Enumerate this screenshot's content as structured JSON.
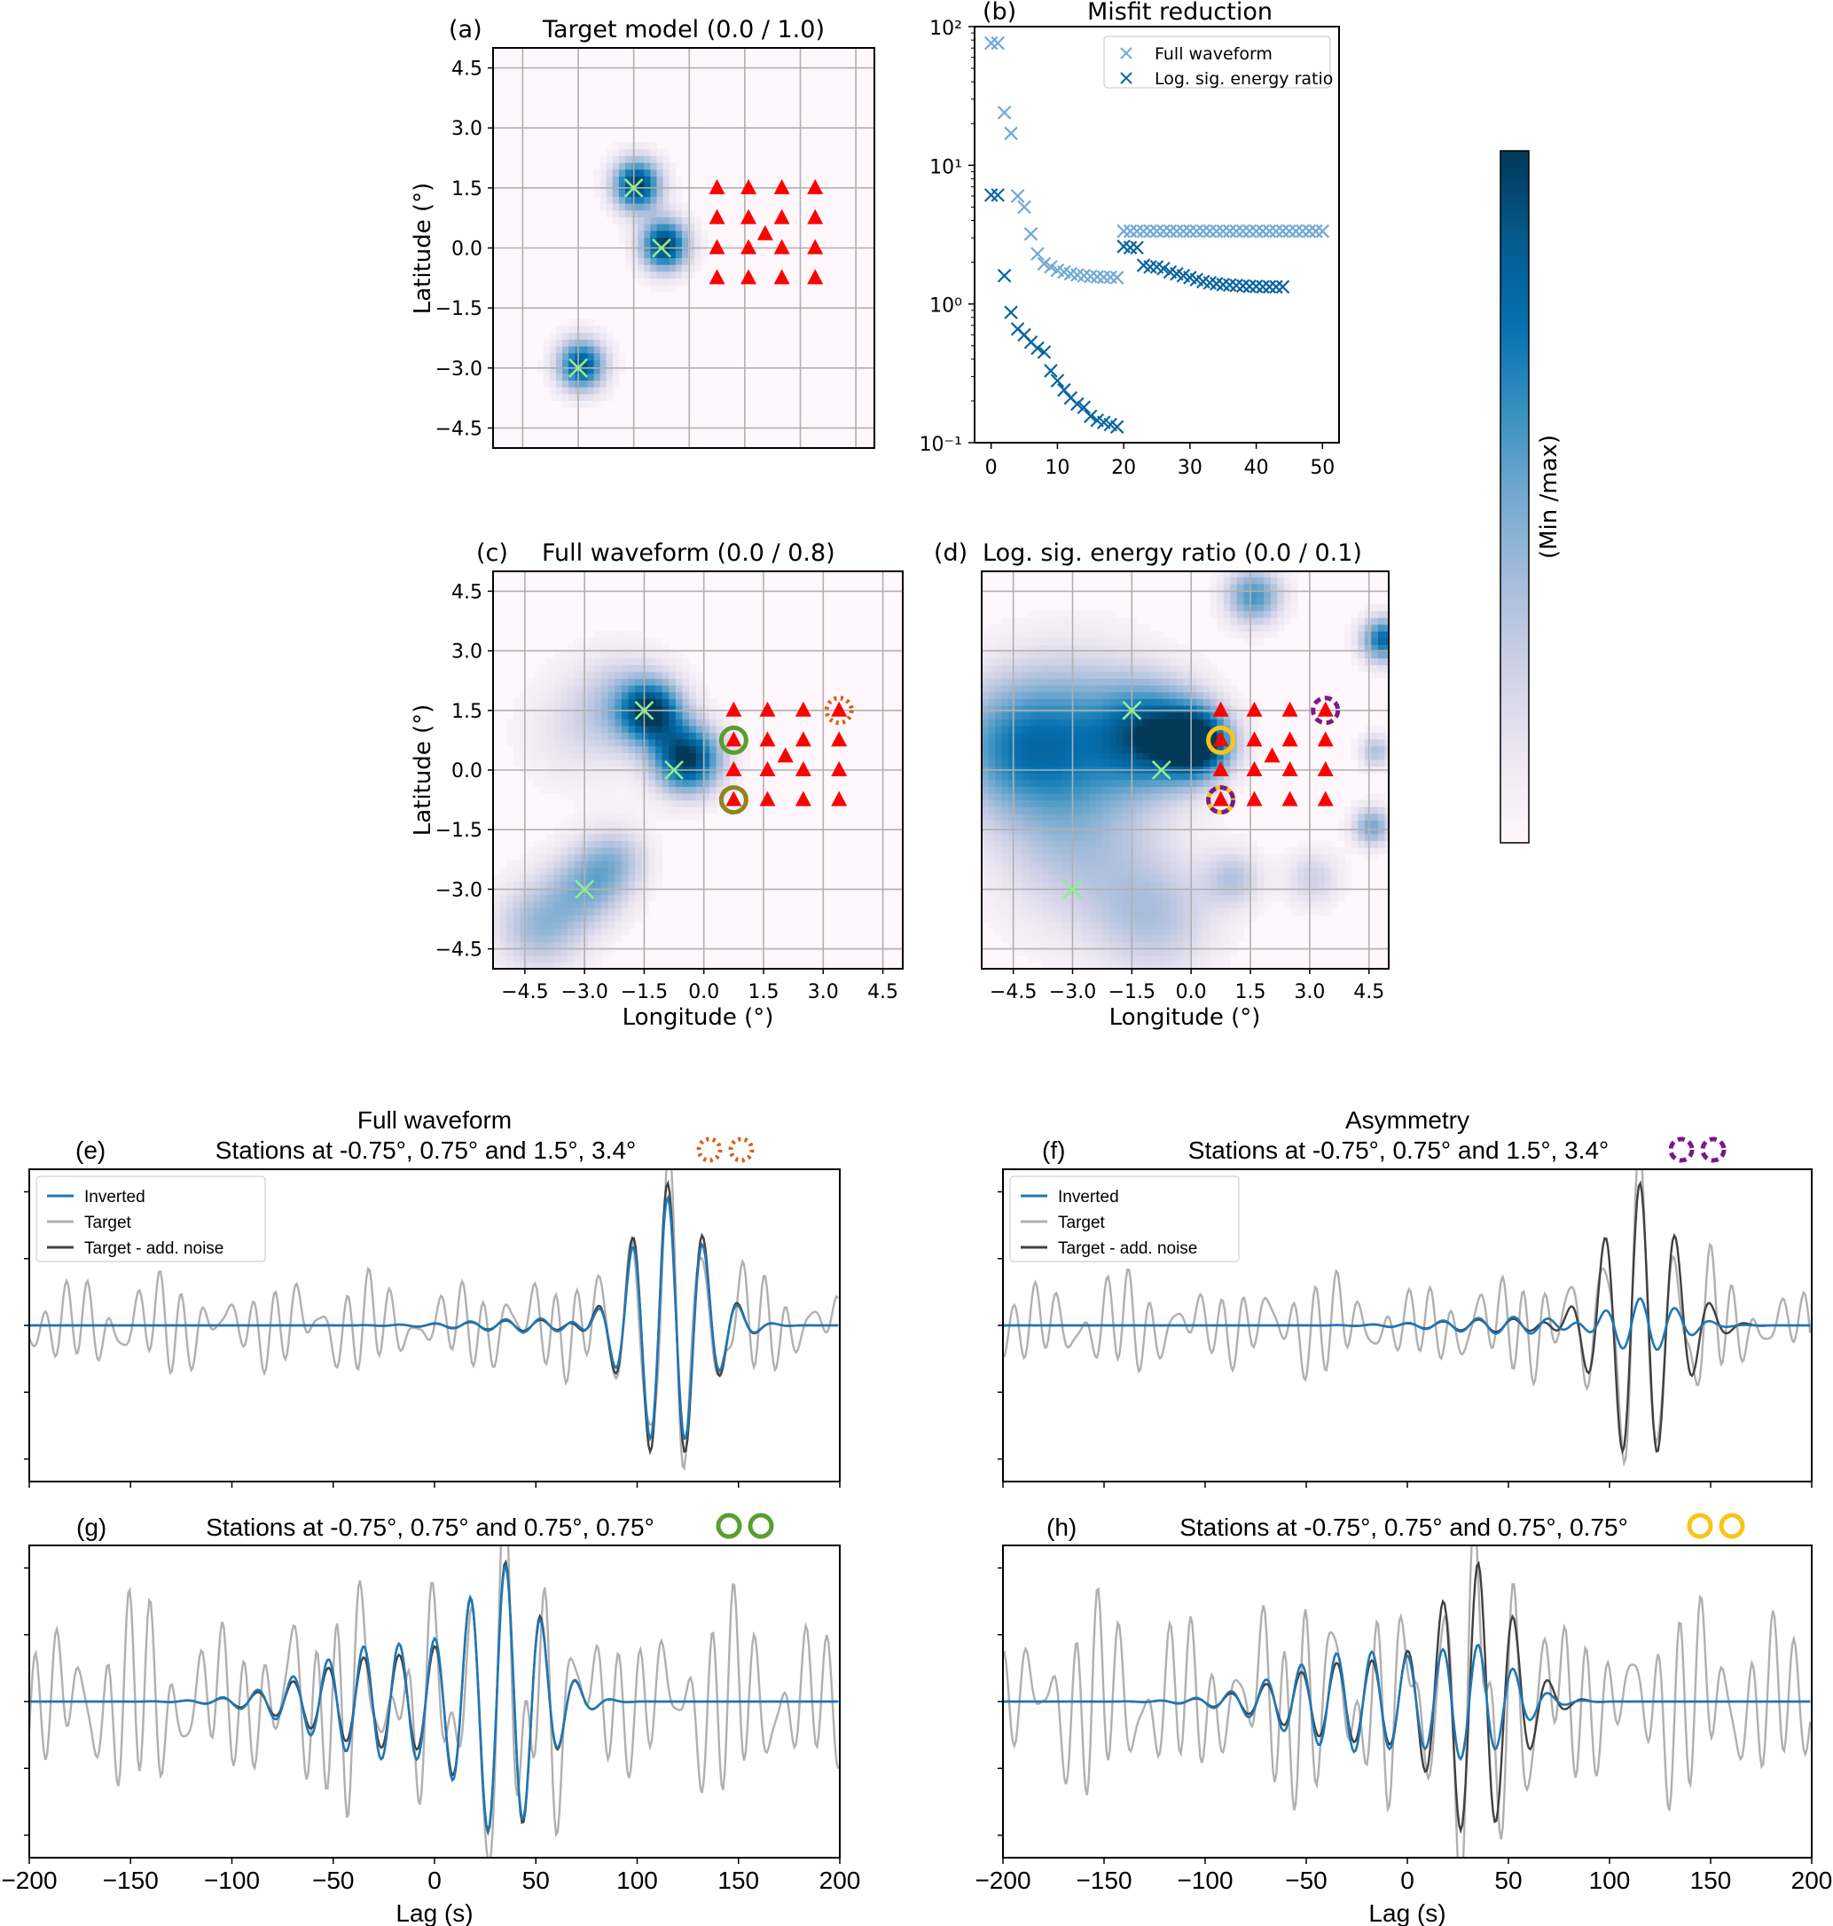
{
  "colors": {
    "colormap": [
      "#fff7fb",
      "#ece7f2",
      "#d0d1e6",
      "#a6bddb",
      "#74a9cf",
      "#3690c0",
      "#0570b0",
      "#045a8d",
      "#023858"
    ],
    "station": "#ff0000",
    "source": "#90ee90",
    "light_series": "#6fa8d6",
    "dark_series": "#0a64a0",
    "inverted": "#1f77b4",
    "target": "#b0b0b0",
    "target_noise": "#404040",
    "orange_marker": "#d95f0e",
    "green_marker": "#5a9e2f",
    "purple_marker": "#7b1a86",
    "yellow_marker": "#f5c518"
  },
  "colorbar": {
    "label": "(Min /max)"
  },
  "chart_data": [
    {
      "id": "a",
      "type": "heatmap",
      "panel_label": "(a)",
      "title": "Target model (0.0 / 1.0)",
      "xlabel": "",
      "ylabel": "Latitude (°)",
      "xlim": [
        -5.3,
        5.0
      ],
      "ylim": [
        -5.0,
        5.0
      ],
      "xticks": [],
      "yticks": [
        "4.5",
        "3.0",
        "1.5",
        "0.0",
        "−1.5",
        "−3.0",
        "−4.5"
      ],
      "ytick_values": [
        4.5,
        3.0,
        1.5,
        0.0,
        -1.5,
        -3.0,
        -4.5
      ],
      "grid": true,
      "blobs": [
        {
          "lon": -1.5,
          "lat": 1.5,
          "spread": 0.45,
          "amp": 1.0
        },
        {
          "lon": -0.75,
          "lat": 0.0,
          "spread": 0.45,
          "amp": 1.0
        },
        {
          "lon": -3.0,
          "lat": -3.0,
          "spread": 0.45,
          "amp": 0.9
        }
      ],
      "sources": [
        {
          "lon": -1.5,
          "lat": 1.5
        },
        {
          "lon": -0.75,
          "lat": 0.0
        },
        {
          "lon": -3.0,
          "lat": -3.0
        }
      ],
      "highlights": []
    },
    {
      "id": "c",
      "type": "heatmap",
      "panel_label": "(c)",
      "title": "Full waveform (0.0 / 0.8)",
      "xlabel": "Longitude (°)",
      "ylabel": "Latitude (°)",
      "xlim": [
        -5.3,
        5.0
      ],
      "ylim": [
        -5.0,
        5.0
      ],
      "xticks": [
        "−4.5",
        "−3.0",
        "−1.5",
        "0.0",
        "1.5",
        "3.0",
        "4.5"
      ],
      "xtick_values": [
        -4.5,
        -3.0,
        -1.5,
        0.0,
        1.5,
        3.0,
        4.5
      ],
      "yticks": [
        "4.5",
        "3.0",
        "1.5",
        "0.0",
        "−1.5",
        "−3.0",
        "−4.5"
      ],
      "ytick_values": [
        4.5,
        3.0,
        1.5,
        0.0,
        -1.5,
        -3.0,
        -4.5
      ],
      "grid": true,
      "blobs": [
        {
          "lon": -1.4,
          "lat": 1.4,
          "spread": 0.55,
          "amp": 0.85
        },
        {
          "lon": -0.5,
          "lat": 0.2,
          "spread": 0.6,
          "amp": 1.0
        },
        {
          "lon": -2.2,
          "lat": 1.6,
          "spread": 0.9,
          "amp": 0.3
        },
        {
          "lon": -3.0,
          "lat": -3.0,
          "spread": 0.7,
          "amp": 0.4
        },
        {
          "lon": -4.2,
          "lat": -4.0,
          "spread": 0.8,
          "amp": 0.4
        },
        {
          "lon": -2.3,
          "lat": -2.3,
          "spread": 0.6,
          "amp": 0.3
        },
        {
          "lon": -3.5,
          "lat": 0.8,
          "spread": 1.0,
          "amp": 0.12
        }
      ],
      "sources": [
        {
          "lon": -1.5,
          "lat": 1.5
        },
        {
          "lon": -0.75,
          "lat": 0.0
        },
        {
          "lon": -3.0,
          "lat": -3.0
        }
      ],
      "highlights": [
        {
          "lon": 3.4,
          "lat": 1.5,
          "style": "dotted",
          "color": "orange"
        },
        {
          "lon": 0.75,
          "lat": 0.75,
          "style": "solid",
          "color": "green"
        },
        {
          "lon": 0.75,
          "lat": -0.75,
          "style": "solid",
          "color": "green"
        },
        {
          "lon": 0.75,
          "lat": -0.75,
          "style": "dotted",
          "color": "orange"
        }
      ]
    },
    {
      "id": "d",
      "type": "heatmap",
      "panel_label": "(d)",
      "title": "Log. sig. energy ratio (0.0 / 0.1)",
      "xlabel": "Longitude (°)",
      "ylabel": "",
      "xlim": [
        -5.3,
        5.0
      ],
      "ylim": [
        -5.0,
        5.0
      ],
      "xticks": [
        "−4.5",
        "−3.0",
        "−1.5",
        "0.0",
        "1.5",
        "3.0",
        "4.5"
      ],
      "xtick_values": [
        -4.5,
        -3.0,
        -1.5,
        0.0,
        1.5,
        3.0,
        4.5
      ],
      "yticks": [],
      "grid": true,
      "blobs": [
        {
          "lon": 0.1,
          "lat": 0.6,
          "spread": 0.6,
          "amp": 1.0
        },
        {
          "lon": -1.0,
          "lat": 0.8,
          "spread": 0.9,
          "amp": 0.75
        },
        {
          "lon": -3.0,
          "lat": 0.8,
          "spread": 1.4,
          "amp": 0.5
        },
        {
          "lon": -4.8,
          "lat": 0.5,
          "spread": 1.2,
          "amp": 0.45
        },
        {
          "lon": -3.0,
          "lat": -2.0,
          "spread": 1.5,
          "amp": 0.3
        },
        {
          "lon": -1.0,
          "lat": -3.8,
          "spread": 1.1,
          "amp": 0.3
        },
        {
          "lon": 1.5,
          "lat": 4.3,
          "spread": 0.5,
          "amp": 0.6
        },
        {
          "lon": 4.8,
          "lat": 3.2,
          "spread": 0.4,
          "amp": 0.8
        },
        {
          "lon": 4.5,
          "lat": -1.5,
          "spread": 0.35,
          "amp": 0.5
        },
        {
          "lon": 4.6,
          "lat": 0.4,
          "spread": 0.3,
          "amp": 0.35
        },
        {
          "lon": 1.0,
          "lat": -2.8,
          "spread": 0.5,
          "amp": 0.3
        },
        {
          "lon": 3.0,
          "lat": -2.8,
          "spread": 0.5,
          "amp": 0.25
        }
      ],
      "sources": [
        {
          "lon": -1.5,
          "lat": 1.5
        },
        {
          "lon": -0.75,
          "lat": 0.0
        },
        {
          "lon": -3.0,
          "lat": -3.0
        }
      ],
      "highlights": [
        {
          "lon": 3.4,
          "lat": 1.5,
          "style": "dashed",
          "color": "purple"
        },
        {
          "lon": 0.75,
          "lat": 0.75,
          "style": "solid",
          "color": "yellow"
        },
        {
          "lon": 0.75,
          "lat": -0.75,
          "style": "solid",
          "color": "yellow"
        },
        {
          "lon": 0.75,
          "lat": -0.75,
          "style": "dashed",
          "color": "purple"
        }
      ]
    },
    {
      "id": "b",
      "type": "scatter",
      "panel_label": "(b)",
      "title": "Misfit reduction",
      "xlabel": "",
      "ylabel": "",
      "xlim": [
        -2.5,
        52.5
      ],
      "ylim": [
        0.1,
        100
      ],
      "yscale": "log",
      "xticks": [
        "0",
        "10",
        "20",
        "30",
        "40",
        "50"
      ],
      "xtick_values": [
        0,
        10,
        20,
        30,
        40,
        50
      ],
      "yticks": [
        "10⁻¹",
        "10⁰",
        "10¹",
        "10²"
      ],
      "ytick_values": [
        0.1,
        1,
        10,
        100
      ],
      "legend_position": "top-right",
      "series": [
        {
          "name": "Full waveform",
          "color": "light",
          "x": [
            0,
            1,
            2,
            3,
            4,
            5,
            6,
            7,
            8,
            9,
            10,
            11,
            12,
            13,
            14,
            15,
            16,
            17,
            18,
            19,
            20,
            21,
            22,
            23,
            24,
            25,
            26,
            27,
            28,
            29,
            30,
            31,
            32,
            33,
            34,
            35,
            36,
            37,
            38,
            39,
            40,
            41,
            42,
            43,
            44,
            45,
            46,
            47,
            48,
            49,
            50
          ],
          "y": [
            76,
            76,
            24,
            17,
            6.0,
            5.0,
            3.2,
            2.3,
            1.95,
            1.85,
            1.75,
            1.7,
            1.65,
            1.62,
            1.6,
            1.58,
            1.57,
            1.56,
            1.56,
            1.55,
            3.35,
            3.35,
            3.35,
            3.35,
            3.35,
            3.35,
            3.35,
            3.35,
            3.35,
            3.35,
            3.35,
            3.35,
            3.35,
            3.35,
            3.35,
            3.35,
            3.35,
            3.35,
            3.35,
            3.35,
            3.35,
            3.35,
            3.35,
            3.35,
            3.35,
            3.35,
            3.35,
            3.35,
            3.35,
            3.35,
            3.35
          ]
        },
        {
          "name": "Log. sig. energy ratio",
          "color": "dark",
          "x": [
            0,
            1,
            2,
            3,
            4,
            5,
            6,
            7,
            8,
            9,
            10,
            11,
            12,
            13,
            14,
            15,
            16,
            17,
            18,
            19,
            20,
            21,
            22,
            23,
            24,
            25,
            26,
            27,
            28,
            29,
            30,
            31,
            32,
            33,
            34,
            35,
            36,
            37,
            38,
            39,
            40,
            41,
            42,
            43,
            44
          ],
          "y": [
            6.1,
            6.1,
            1.6,
            0.87,
            0.66,
            0.6,
            0.53,
            0.48,
            0.45,
            0.33,
            0.28,
            0.24,
            0.21,
            0.19,
            0.18,
            0.155,
            0.145,
            0.14,
            0.135,
            0.13,
            2.6,
            2.55,
            2.55,
            1.9,
            1.85,
            1.85,
            1.8,
            1.7,
            1.65,
            1.6,
            1.55,
            1.5,
            1.45,
            1.42,
            1.4,
            1.38,
            1.37,
            1.36,
            1.35,
            1.34,
            1.34,
            1.33,
            1.33,
            1.33,
            1.33
          ]
        }
      ]
    },
    {
      "id": "e",
      "type": "line",
      "panel_label": "(e)",
      "title_line1": "Full waveform",
      "title_line2": "Stations at -0.75°, 0.75° and 1.5°, 3.4°",
      "marker": {
        "style": "dotted",
        "color": "orange"
      },
      "xlim": [
        -200,
        200
      ],
      "xlabel": "",
      "xticks": [],
      "xtick_values": [
        -200,
        -150,
        -100,
        -50,
        0,
        50,
        100,
        150,
        200
      ],
      "legend": [
        "Inverted",
        "Target",
        "Target - add. noise"
      ],
      "legend_position": "top-left",
      "signal_center": 115,
      "signal_amp": 1.0,
      "inverted_scale": 0.9,
      "inverted_early": 0.05,
      "noise_amp": 0.38
    },
    {
      "id": "f",
      "type": "line",
      "panel_label": "(f)",
      "title_line1": "Asymmetry",
      "title_line2": "Stations at -0.75°, 0.75° and 1.5°, 3.4°",
      "marker": {
        "style": "dashed",
        "color": "purple"
      },
      "xlim": [
        -200,
        200
      ],
      "xlabel": "",
      "xticks": [],
      "xtick_values": [
        -200,
        -150,
        -100,
        -50,
        0,
        50,
        100,
        150,
        200
      ],
      "legend": [
        "Inverted",
        "Target",
        "Target - add. noise"
      ],
      "legend_position": "top-left",
      "signal_center": 115,
      "signal_amp": 1.0,
      "inverted_scale": 0.2,
      "inverted_early": 0.06,
      "noise_amp": 0.38
    },
    {
      "id": "g",
      "type": "line",
      "panel_label": "(g)",
      "title_line1": "",
      "title_line2": "Stations at -0.75°, 0.75° and 0.75°, 0.75°",
      "marker": {
        "style": "solid",
        "color": "green"
      },
      "xlim": [
        -200,
        200
      ],
      "xlabel": "Lag (s)",
      "xticks": [
        "−200",
        "−150",
        "−100",
        "−50",
        "0",
        "50",
        "100",
        "150",
        "200"
      ],
      "xtick_values": [
        -200,
        -150,
        -100,
        -50,
        0,
        50,
        100,
        150,
        200
      ],
      "legend": [],
      "signal_center": 35,
      "signal_amp": 0.9,
      "inverted_scale": 0.95,
      "inverted_early": 0.4,
      "noise_amp": 0.75
    },
    {
      "id": "h",
      "type": "line",
      "panel_label": "(h)",
      "title_line1": "",
      "title_line2": "Stations at -0.75°, 0.75° and 0.75°, 0.75°",
      "marker": {
        "style": "solid",
        "color": "yellow"
      },
      "xlim": [
        -200,
        200
      ],
      "xlabel": "Lag (s)",
      "xticks": [
        "−200",
        "−150",
        "−100",
        "−50",
        "0",
        "50",
        "100",
        "150",
        "200"
      ],
      "xtick_values": [
        -200,
        -150,
        -100,
        -50,
        0,
        50,
        100,
        150,
        200
      ],
      "legend": [],
      "signal_center": 35,
      "signal_amp": 0.9,
      "inverted_scale": 0.35,
      "inverted_early": 0.35,
      "noise_amp": 0.75
    }
  ],
  "stations": [
    {
      "lon": 0.75,
      "lat": 1.5
    },
    {
      "lon": 1.6,
      "lat": 1.5
    },
    {
      "lon": 2.5,
      "lat": 1.5
    },
    {
      "lon": 3.4,
      "lat": 1.5
    },
    {
      "lon": 0.75,
      "lat": 0.75
    },
    {
      "lon": 1.6,
      "lat": 0.75
    },
    {
      "lon": 2.5,
      "lat": 0.75
    },
    {
      "lon": 3.4,
      "lat": 0.75
    },
    {
      "lon": 2.05,
      "lat": 0.35
    },
    {
      "lon": 0.75,
      "lat": 0.0
    },
    {
      "lon": 1.6,
      "lat": 0.0
    },
    {
      "lon": 2.5,
      "lat": 0.0
    },
    {
      "lon": 3.4,
      "lat": 0.0
    },
    {
      "lon": 0.75,
      "lat": -0.75
    },
    {
      "lon": 1.6,
      "lat": -0.75
    },
    {
      "lon": 2.5,
      "lat": -0.75
    },
    {
      "lon": 3.4,
      "lat": -0.75
    }
  ]
}
